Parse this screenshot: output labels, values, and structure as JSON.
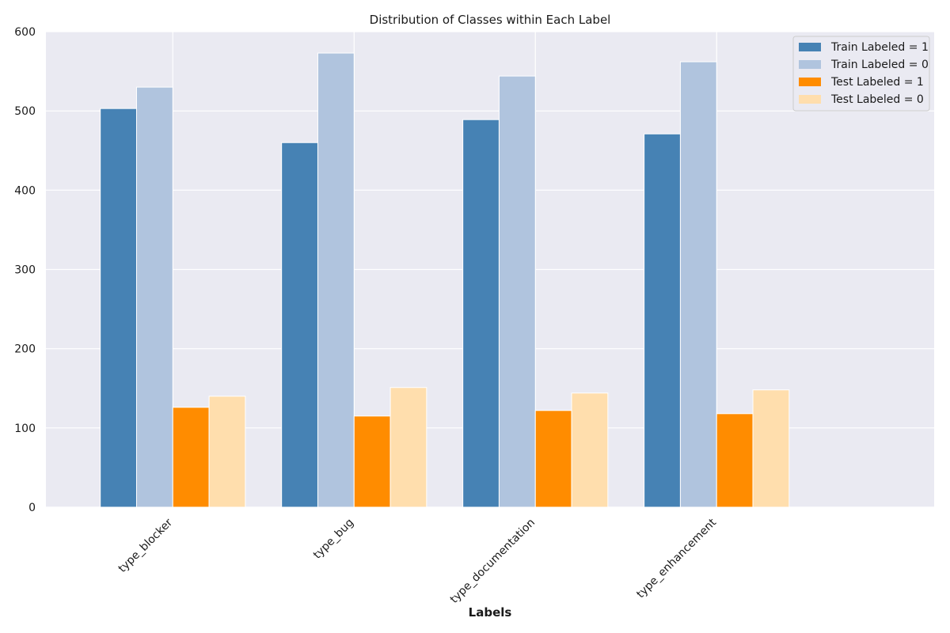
{
  "chart_data": {
    "type": "bar",
    "title": "Distribution of Classes within Each Label",
    "xlabel": "Labels",
    "ylabel": "",
    "ylim": [
      0,
      600
    ],
    "yticks": [
      0,
      100,
      200,
      300,
      400,
      500,
      600
    ],
    "categories": [
      "type_blocker",
      "type_bug",
      "type_documentation",
      "type_enhancement"
    ],
    "series": [
      {
        "name": "Train Labeled = 1",
        "color": "#4682b4",
        "values": [
          503,
          460,
          489,
          471
        ]
      },
      {
        "name": "Train Labeled = 0",
        "color": "#b0c4de",
        "values": [
          530,
          573,
          544,
          562
        ]
      },
      {
        "name": "Test Labeled = 1",
        "color": "#ff8c00",
        "values": [
          126,
          115,
          122,
          118
        ]
      },
      {
        "name": "Test Labeled = 0",
        "color": "#ffdead",
        "values": [
          140,
          151,
          144,
          148
        ]
      }
    ],
    "grid": true,
    "legend_position": "top-right",
    "background_color": "#eaeaf2",
    "grid_color": "#ffffff"
  }
}
